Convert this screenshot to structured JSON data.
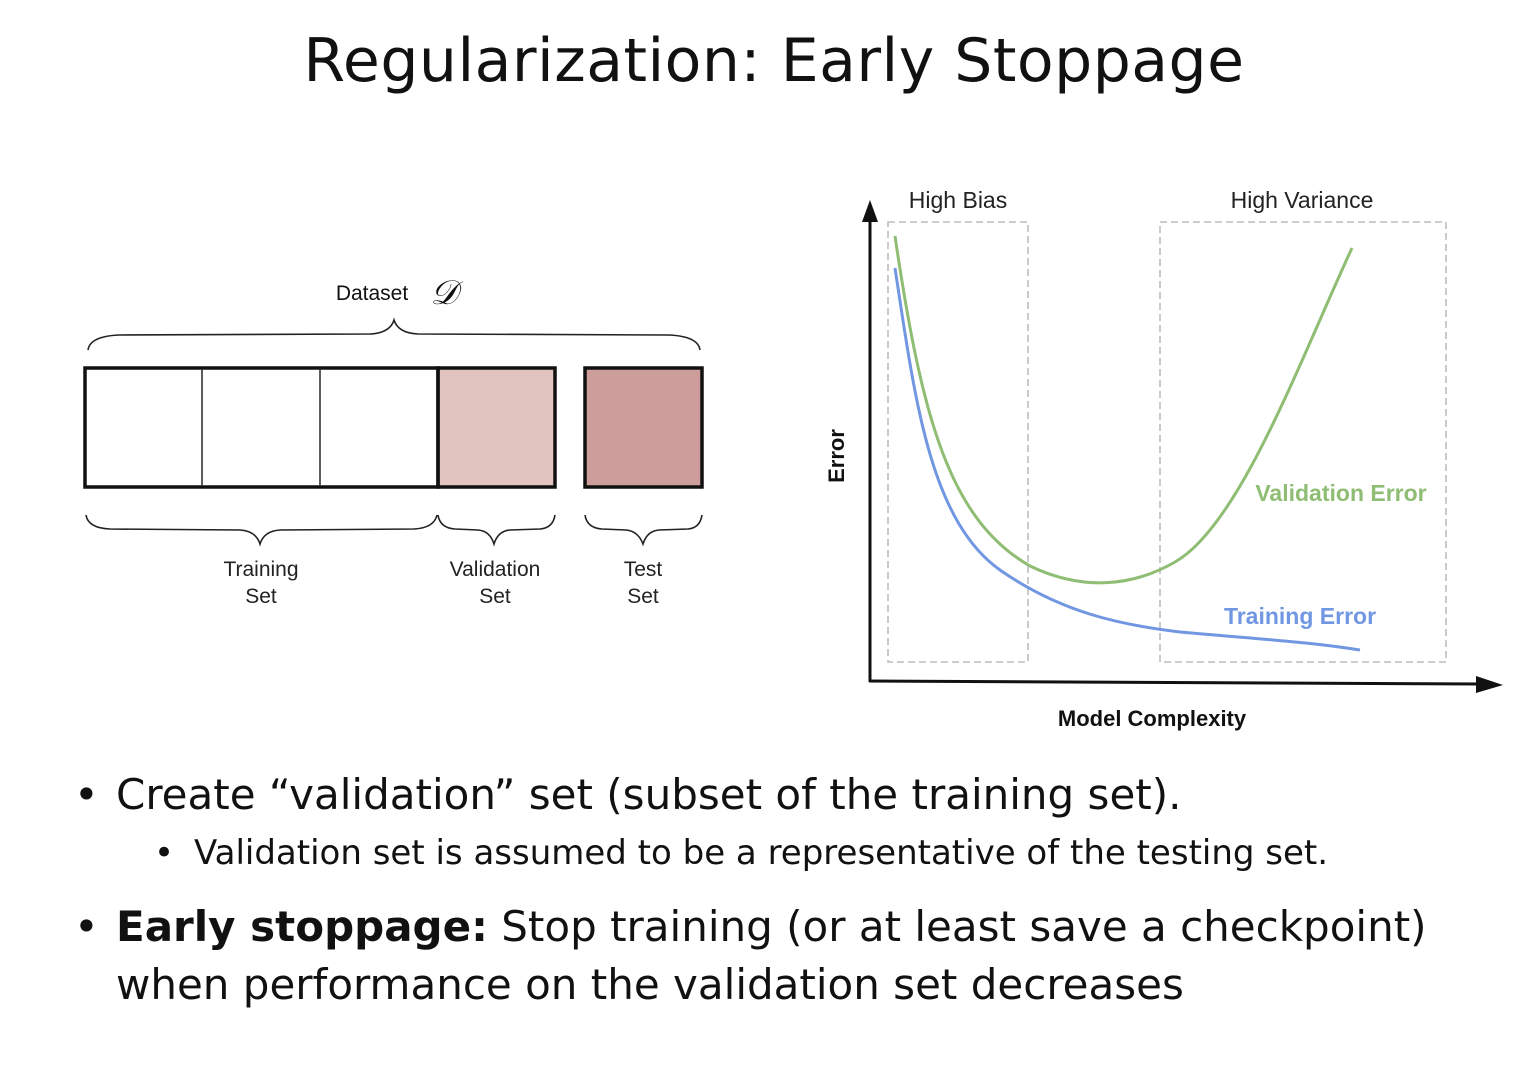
{
  "slide": {
    "title": "Regularization: Early Stoppage"
  },
  "dataset_diagram": {
    "dataset_label": "Dataset",
    "dataset_symbol": "𝒟",
    "training_label": [
      "Training",
      "Set"
    ],
    "validation_label": [
      "Validation",
      "Set"
    ],
    "test_label": [
      "Test",
      "Set"
    ],
    "colors": {
      "validation_fill": "#e1c3c0",
      "test_fill": "#cc9d9a",
      "box_stroke": "#111111"
    }
  },
  "complexity_chart": {
    "y_axis_label": "Error",
    "x_axis_label": "Model Complexity",
    "region_left_label": "High Bias",
    "region_right_label": "High Variance",
    "validation_curve_label": "Validation Error",
    "training_curve_label": "Training Error",
    "colors": {
      "validation": "#8fbd73",
      "training": "#7197e2",
      "region_border": "#bdbdbd"
    }
  },
  "bullets": {
    "item1": "Create “validation” set (subset of the training set).",
    "item1_sub": "Validation set is assumed to be a representative of the testing set.",
    "item2_bold": "Early stoppage:",
    "item2_text": " Stop training (or at least save a checkpoint) when performance on the validation set decreases",
    "bullet_char": "•"
  }
}
